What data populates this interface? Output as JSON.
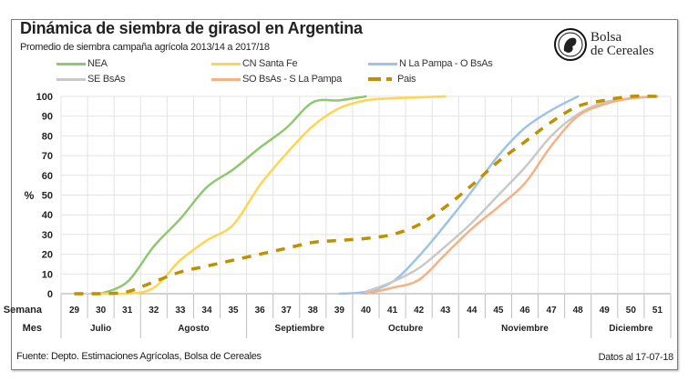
{
  "header": {
    "title": "Dinámica de siembra de girasol en Argentina",
    "subtitle": "Promedio de siembra campaña agrícola 2013/14  a 2017/18",
    "logo_text_line1": "Bolsa",
    "logo_text_line2": "de Cereales"
  },
  "footer": {
    "source": "Fuente: Depto. Estimaciones Agrícolas, Bolsa de Cereales",
    "date": "Datos al 17-07-18"
  },
  "chart_data": {
    "type": "line",
    "title": "Dinámica de siembra de girasol en Argentina",
    "ylabel": "%",
    "xlabel_row1": "Semana",
    "xlabel_row2": "Mes",
    "ylim": [
      0,
      100
    ],
    "yticks": [
      "0",
      "10",
      "20",
      "30",
      "40",
      "50",
      "60",
      "70",
      "80",
      "90",
      "100"
    ],
    "grid": true,
    "legend_position": "top",
    "categories": [
      "29",
      "30",
      "31",
      "32",
      "33",
      "34",
      "35",
      "36",
      "37",
      "38",
      "39",
      "40",
      "41",
      "42",
      "43",
      "44",
      "45",
      "46",
      "47",
      "48",
      "49",
      "50",
      "51"
    ],
    "months": [
      {
        "label": "Julio",
        "span": 3
      },
      {
        "label": "Agosto",
        "span": 4
      },
      {
        "label": "Septiembre",
        "span": 4
      },
      {
        "label": "Octubre",
        "span": 4
      },
      {
        "label": "Noviembre",
        "span": 5
      },
      {
        "label": "Diciembre",
        "span": 3
      }
    ],
    "series": [
      {
        "name": "NEA",
        "color": "#8fc870",
        "dashed": false,
        "values": [
          null,
          0,
          6,
          24,
          38,
          54,
          63,
          74,
          84,
          97,
          98,
          100,
          null,
          null,
          null,
          null,
          null,
          null,
          null,
          null,
          null,
          null,
          null
        ]
      },
      {
        "name": "CN Santa Fe",
        "color": "#ffd54f",
        "dashed": false,
        "values": [
          null,
          0,
          0,
          3,
          17,
          27,
          35,
          55,
          71,
          85,
          94,
          98,
          99,
          99.5,
          100,
          null,
          null,
          null,
          null,
          null,
          null,
          null,
          null
        ]
      },
      {
        "name": "N La Pampa - O BsAs",
        "color": "#9dc3e6",
        "dashed": false,
        "values": [
          null,
          null,
          null,
          null,
          null,
          null,
          null,
          null,
          null,
          null,
          0,
          1,
          6,
          19,
          35,
          52,
          70,
          84,
          93,
          100,
          null,
          null,
          null
        ]
      },
      {
        "name": "SE BsAs",
        "color": "#c9c9c9",
        "dashed": false,
        "values": [
          null,
          null,
          null,
          null,
          null,
          null,
          null,
          null,
          null,
          null,
          null,
          1,
          6,
          13,
          24,
          36,
          50,
          64,
          80,
          91,
          97,
          99,
          100
        ]
      },
      {
        "name": "SO BsAs - S La Pampa",
        "color": "#f4b183",
        "dashed": false,
        "values": [
          null,
          null,
          null,
          null,
          null,
          null,
          null,
          null,
          null,
          null,
          null,
          0,
          3,
          7,
          20,
          33,
          44,
          56,
          75,
          90,
          96,
          99,
          100
        ]
      },
      {
        "name": "Pais",
        "color": "#bf9000",
        "dashed": true,
        "values": [
          0,
          0,
          1,
          6,
          11,
          14,
          17,
          20,
          23,
          26,
          27,
          28,
          30,
          35,
          44,
          55,
          67,
          77,
          87,
          95,
          98,
          100,
          100
        ]
      }
    ]
  }
}
